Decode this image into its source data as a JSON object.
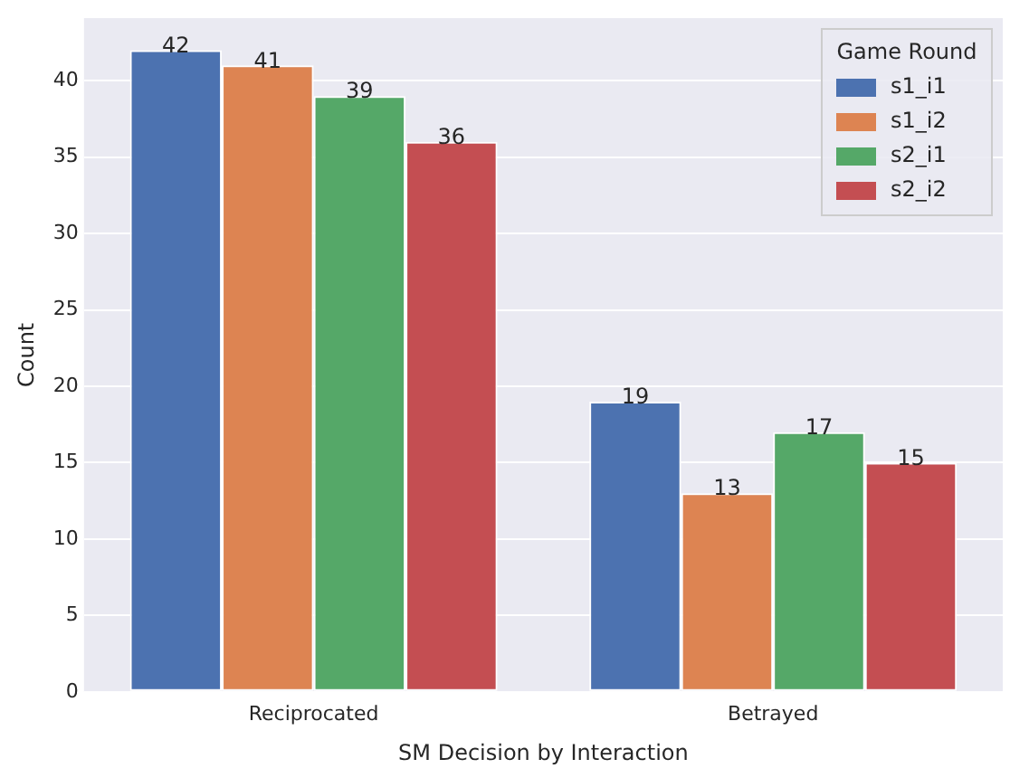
{
  "chart_data": {
    "type": "bar",
    "xlabel": "SM Decision by Interaction",
    "ylabel": "Count",
    "legend_title": "Game Round",
    "categories": [
      "Reciprocated",
      "Betrayed"
    ],
    "series": [
      {
        "name": "s1_i1",
        "color": "#4c72b0",
        "values": [
          42,
          19
        ]
      },
      {
        "name": "s1_i2",
        "color": "#dd8452",
        "values": [
          41,
          13
        ]
      },
      {
        "name": "s2_i1",
        "color": "#55a868",
        "values": [
          39,
          17
        ]
      },
      {
        "name": "s2_i2",
        "color": "#c44e52",
        "values": [
          36,
          15
        ]
      }
    ],
    "ylim": [
      0,
      44.1
    ],
    "yticks": [
      0,
      5,
      10,
      15,
      20,
      25,
      30,
      35,
      40
    ],
    "grid": "y",
    "legend": "top right",
    "data_labels": true
  }
}
